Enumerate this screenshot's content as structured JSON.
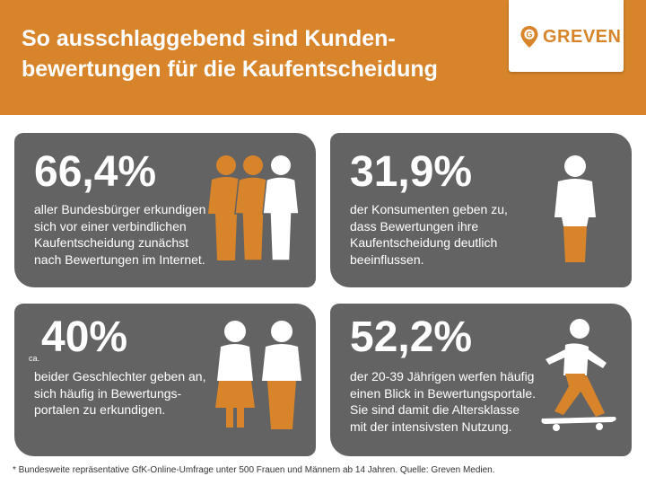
{
  "header": {
    "title_line1": "So ausschlaggebend sind Kunden-",
    "title_line2": "bewertungen für die Kaufentscheidung",
    "logo_text": "GREVEN"
  },
  "colors": {
    "accent": "#d8842a",
    "card": "#636363",
    "text": "#ffffff"
  },
  "cards": [
    {
      "value": "66,4%",
      "lines": [
        "aller Bundesbürger erkundigen",
        "sich vor einer verbindlichen",
        "Kaufentscheidung zunächst",
        "nach Bewertungen im Internet."
      ],
      "icon": "three-people-icon"
    },
    {
      "value": "31,9%",
      "lines": [
        "der Konsumenten geben zu,",
        "dass Bewertungen ihre",
        "Kaufentscheidung deutlich",
        "beeinflussen."
      ],
      "icon": "person-partially-filled-icon"
    },
    {
      "prefix": "ca.",
      "value": "40%",
      "lines": [
        "beider Geschlechter geben an,",
        "sich häufig in Bewertungs-",
        "portalen zu erkundigen."
      ],
      "icon": "woman-and-man-icon"
    },
    {
      "value": "52,2%",
      "lines": [
        "der 20-39 Jährigen werfen häufig",
        "einen Blick in Bewertungsportale.",
        "Sie sind damit die Altersklasse",
        "mit der intensivsten Nutzung."
      ],
      "icon": "skateboarder-icon"
    }
  ],
  "footnote": "* Bundesweite repräsentative GfK-Online-Umfrage unter 500 Frauen und Männern ab 14 Jahren. Quelle: Greven Medien."
}
